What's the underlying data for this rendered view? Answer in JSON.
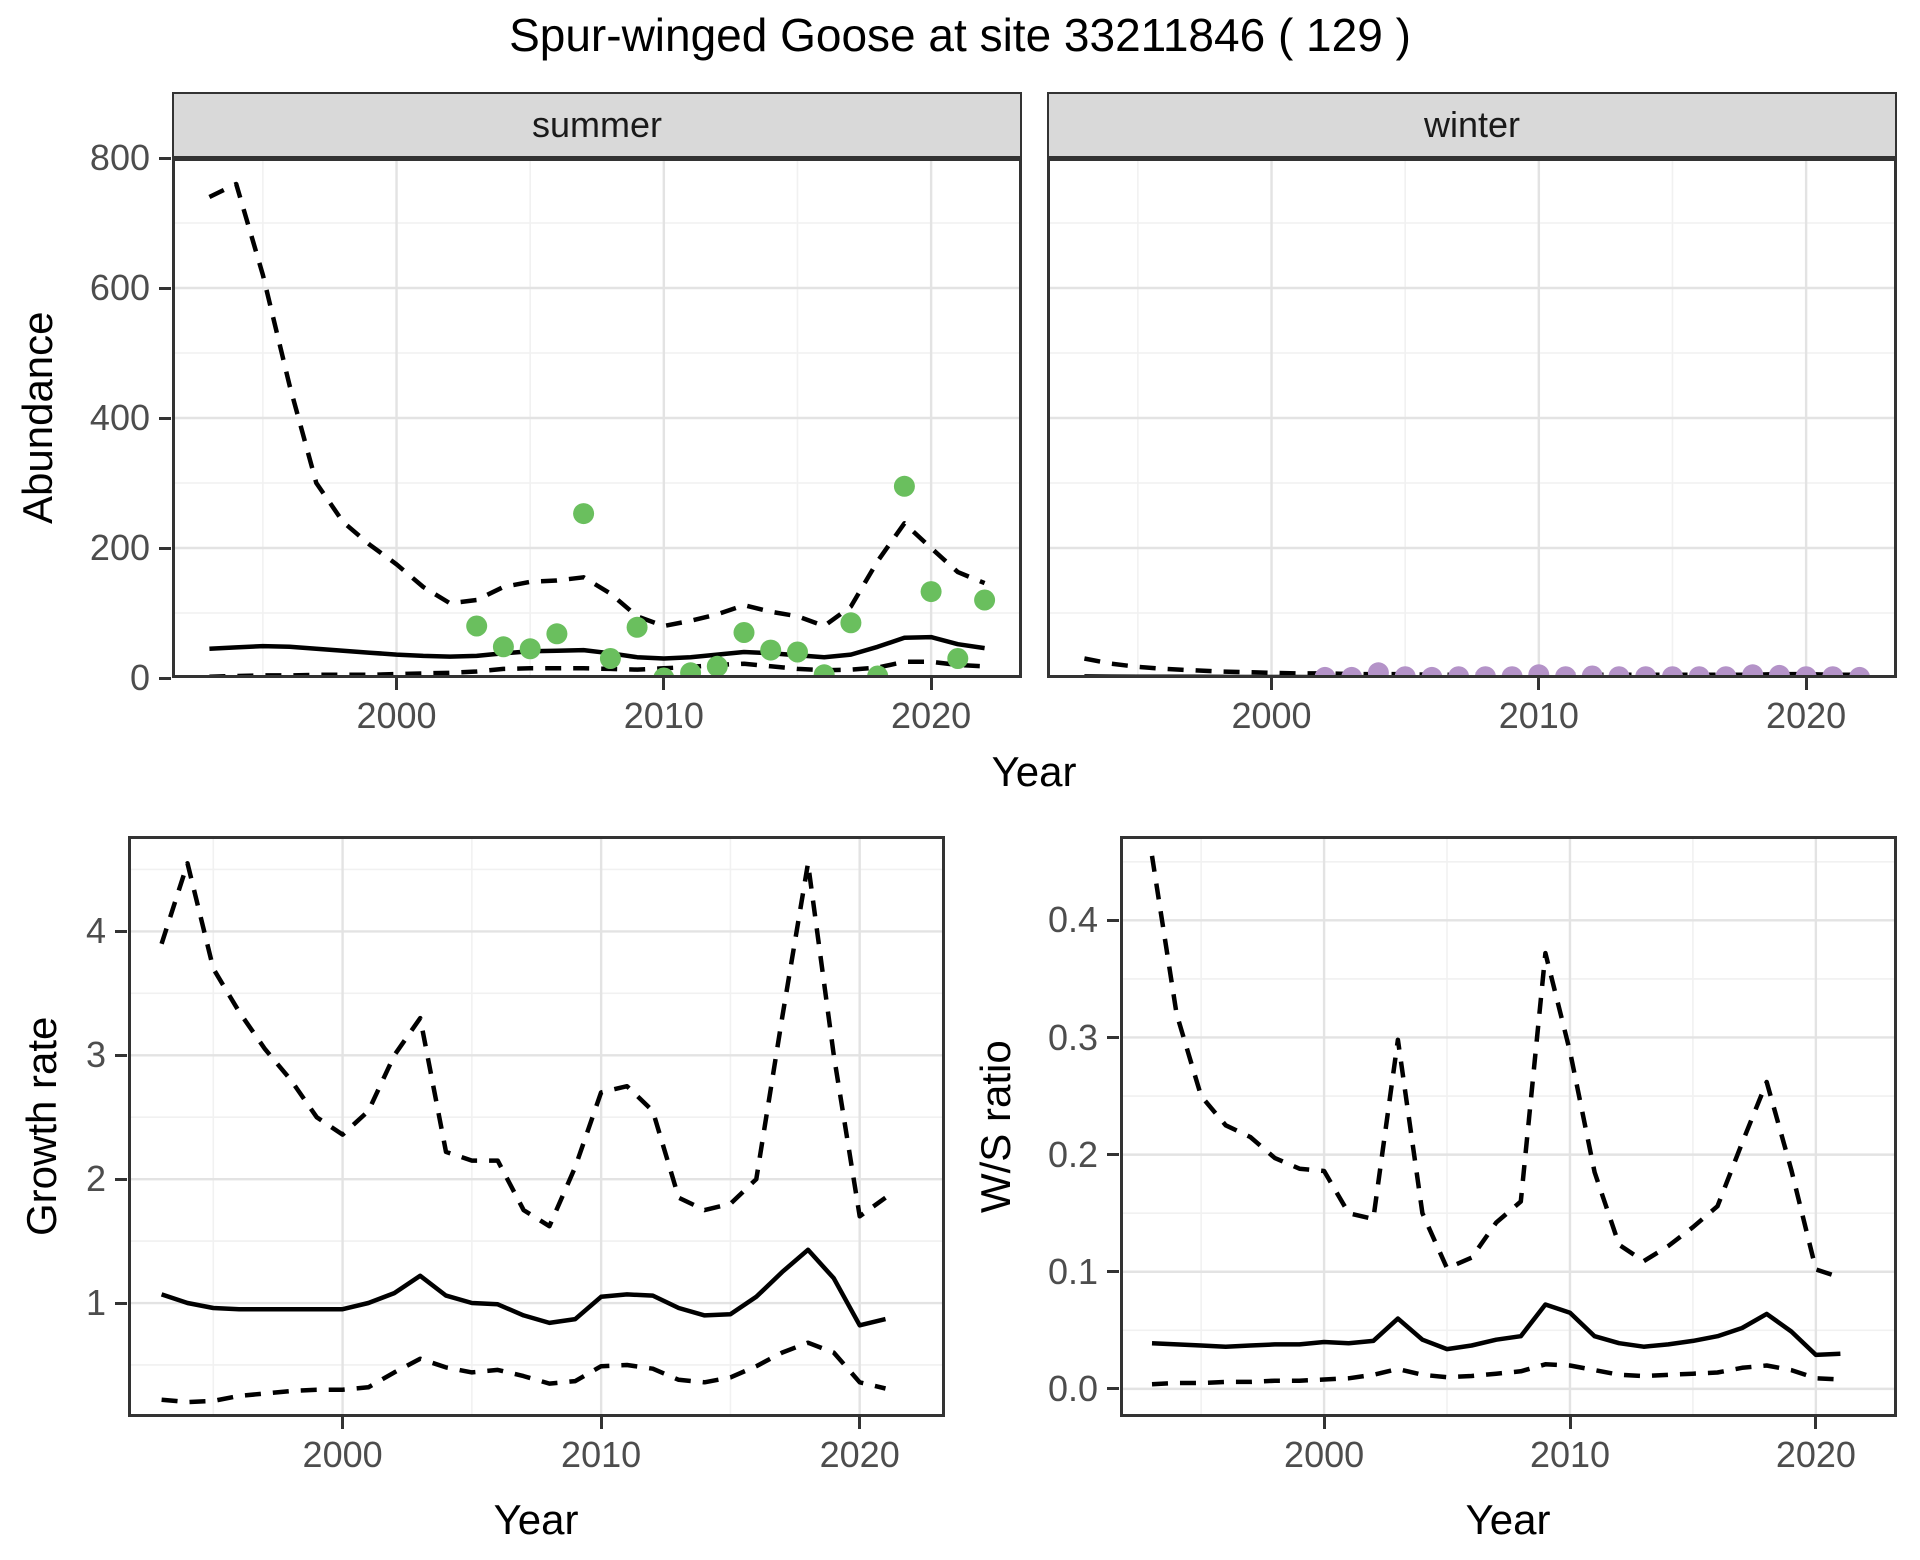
{
  "title": "Spur-winged Goose at site 33211846 ( 129 )",
  "colors": {
    "summer_point": "#6abf5e",
    "winter_point": "#b493c8",
    "fit_line": "#000000",
    "strip_bg": "#d9d9d9",
    "panel_border": "#333333",
    "grid_major": "#e3e3e3",
    "grid_minor": "#f1f1f1",
    "tick_text": "#4d4d4d"
  },
  "facets": {
    "summer": "summer",
    "winter": "winter"
  },
  "axis_titles": {
    "abundance": "Abundance",
    "year_top": "Year",
    "growth": "Growth rate",
    "year_bl": "Year",
    "ws": "W/S ratio",
    "year_br": "Year"
  },
  "chart_data": [
    {
      "id": "summer",
      "type": "line",
      "facet_label": "summer",
      "xlabel": "Year",
      "ylabel": "Abundance",
      "xlim": [
        1991.6,
        2023.4
      ],
      "ylim": [
        0,
        800
      ],
      "xticks": {
        "values": [
          2000,
          2010,
          2020
        ],
        "labels": [
          "2000",
          "2010",
          "2020"
        ]
      },
      "yticks": {
        "values": [
          0,
          200,
          400,
          600,
          800
        ],
        "labels": [
          "0",
          "200",
          "400",
          "600",
          "800"
        ]
      },
      "grid": true,
      "legend": "none",
      "series": [
        {
          "name": "upper-ci",
          "linetype": "dashed",
          "years": [
            1993,
            1994,
            1995,
            1996,
            1997,
            1998,
            1999,
            2000,
            2001,
            2002,
            2003,
            2004,
            2005,
            2006,
            2007,
            2008,
            2009,
            2010,
            2011,
            2012,
            2013,
            2014,
            2015,
            2016,
            2017,
            2018,
            2019,
            2020,
            2021,
            2022
          ],
          "values": [
            740,
            760,
            620,
            450,
            300,
            240,
            205,
            175,
            140,
            115,
            120,
            140,
            148,
            150,
            155,
            130,
            95,
            80,
            88,
            98,
            112,
            102,
            95,
            80,
            110,
            180,
            238,
            200,
            163,
            146
          ]
        },
        {
          "name": "mean-fit",
          "linetype": "solid",
          "years": [
            1993,
            1994,
            1995,
            1996,
            1997,
            1998,
            1999,
            2000,
            2001,
            2002,
            2003,
            2004,
            2005,
            2006,
            2007,
            2008,
            2009,
            2010,
            2011,
            2012,
            2013,
            2014,
            2015,
            2016,
            2017,
            2018,
            2019,
            2020,
            2021,
            2022
          ],
          "values": [
            45,
            47,
            49,
            48,
            45,
            42,
            39,
            36,
            34,
            33,
            34,
            38,
            41,
            42,
            43,
            38,
            32,
            30,
            32,
            36,
            40,
            38,
            35,
            32,
            36,
            48,
            62,
            63,
            52,
            46
          ]
        },
        {
          "name": "lower-ci",
          "linetype": "dashed",
          "years": [
            1993,
            1994,
            1995,
            1996,
            1997,
            1998,
            1999,
            2000,
            2001,
            2002,
            2003,
            2004,
            2005,
            2006,
            2007,
            2008,
            2009,
            2010,
            2011,
            2012,
            2013,
            2014,
            2015,
            2016,
            2017,
            2018,
            2019,
            2020,
            2021,
            2022
          ],
          "values": [
            2,
            3,
            4,
            4,
            5,
            5,
            5,
            6,
            7,
            8,
            10,
            14,
            15,
            15,
            15,
            14,
            13,
            15,
            17,
            20,
            22,
            18,
            14,
            12,
            13,
            16,
            25,
            25,
            20,
            18
          ]
        }
      ],
      "points": {
        "name": "observed-count",
        "color_key": "summer_point",
        "years": [
          2003,
          2004,
          2005,
          2006,
          2007,
          2008,
          2009,
          2010,
          2011,
          2012,
          2013,
          2014,
          2015,
          2016,
          2017,
          2018,
          2019,
          2020,
          2021,
          2022
        ],
        "values": [
          80,
          48,
          45,
          68,
          253,
          30,
          78,
          0,
          8,
          18,
          70,
          43,
          40,
          5,
          85,
          3,
          295,
          133,
          30,
          120
        ]
      }
    },
    {
      "id": "winter",
      "type": "line",
      "facet_label": "winter",
      "xlabel": "Year",
      "ylabel": "Abundance",
      "xlim": [
        1991.6,
        2023.4
      ],
      "ylim": [
        0,
        800
      ],
      "xticks": {
        "values": [
          2000,
          2010,
          2020
        ],
        "labels": [
          "2000",
          "2010",
          "2020"
        ]
      },
      "yticks": {
        "values": [
          0,
          200,
          400,
          600,
          800
        ],
        "labels": [
          "0",
          "200",
          "400",
          "600",
          "800"
        ]
      },
      "grid": true,
      "legend": "none",
      "series": [
        {
          "name": "upper-ci",
          "linetype": "dashed",
          "years": [
            1993,
            1994,
            1995,
            1996,
            1997,
            1998,
            1999,
            2000,
            2001,
            2002,
            2003,
            2004,
            2005,
            2006,
            2007,
            2008,
            2009,
            2010,
            2011,
            2012,
            2013,
            2014,
            2015,
            2016,
            2017,
            2018,
            2019,
            2020,
            2021,
            2022
          ],
          "values": [
            30,
            22,
            17,
            14,
            12,
            10,
            9,
            8,
            7,
            7,
            6,
            6,
            6,
            5,
            5,
            5,
            5,
            5,
            5,
            5,
            5,
            5,
            5,
            5,
            5,
            5,
            6,
            6,
            5,
            5
          ]
        },
        {
          "name": "mean-fit",
          "linetype": "solid",
          "years": [
            1993,
            1994,
            1995,
            1996,
            1997,
            1998,
            1999,
            2000,
            2001,
            2002,
            2003,
            2004,
            2005,
            2006,
            2007,
            2008,
            2009,
            2010,
            2011,
            2012,
            2013,
            2014,
            2015,
            2016,
            2017,
            2018,
            2019,
            2020,
            2021,
            2022
          ],
          "values": [
            2.5,
            2.2,
            2.0,
            1.9,
            1.8,
            1.7,
            1.6,
            1.5,
            1.5,
            1.4,
            1.4,
            1.3,
            1.3,
            1.3,
            1.2,
            1.2,
            1.2,
            1.2,
            1.2,
            1.2,
            1.2,
            1.2,
            1.2,
            1.2,
            1.2,
            1.2,
            1.3,
            1.3,
            1.2,
            1.2
          ]
        },
        {
          "name": "lower-ci",
          "linetype": "dashed",
          "years": [
            1993,
            1994,
            1995,
            1996,
            1997,
            1998,
            1999,
            2000,
            2001,
            2002,
            2003,
            2004,
            2005,
            2006,
            2007,
            2008,
            2009,
            2010,
            2011,
            2012,
            2013,
            2014,
            2015,
            2016,
            2017,
            2018,
            2019,
            2020,
            2021,
            2022
          ],
          "values": [
            0.1,
            0.1,
            0.1,
            0.1,
            0.1,
            0.1,
            0.1,
            0.1,
            0.1,
            0.1,
            0.1,
            0.1,
            0.1,
            0.1,
            0.1,
            0.1,
            0.1,
            0.1,
            0.1,
            0.1,
            0.1,
            0.1,
            0.1,
            0.1,
            0.1,
            0.1,
            0.1,
            0.1,
            0.1,
            0.1
          ]
        }
      ],
      "points": {
        "name": "observed-count",
        "color_key": "winter_point",
        "years": [
          2002,
          2003,
          2004,
          2005,
          2006,
          2007,
          2008,
          2009,
          2010,
          2011,
          2012,
          2013,
          2014,
          2015,
          2016,
          2017,
          2018,
          2019,
          2020,
          2021,
          2022
        ],
        "values": [
          1,
          1,
          8,
          2,
          1,
          2,
          2,
          2,
          5,
          2,
          3,
          2,
          2,
          2,
          2,
          2,
          5,
          4,
          2,
          2,
          1
        ]
      }
    },
    {
      "id": "growth",
      "type": "line",
      "facet_label": "",
      "xlabel": "Year",
      "ylabel": "Growth rate",
      "xlim": [
        1991.7,
        2023.3
      ],
      "ylim": [
        0.08,
        4.77
      ],
      "xticks": {
        "values": [
          2000,
          2010,
          2020
        ],
        "labels": [
          "2000",
          "2010",
          "2020"
        ]
      },
      "yticks": {
        "values": [
          1,
          2,
          3,
          4
        ],
        "labels": [
          "1",
          "2",
          "3",
          "4"
        ]
      },
      "grid": true,
      "legend": "none",
      "series": [
        {
          "name": "upper-ci",
          "linetype": "dashed",
          "years": [
            1993,
            1994,
            1995,
            1996,
            1997,
            1998,
            1999,
            2000,
            2001,
            2002,
            2003,
            2004,
            2005,
            2006,
            2007,
            2008,
            2009,
            2010,
            2011,
            2012,
            2013,
            2014,
            2015,
            2016,
            2017,
            2018,
            2019,
            2020,
            2021
          ],
          "values": [
            3.9,
            4.55,
            3.7,
            3.35,
            3.05,
            2.8,
            2.5,
            2.36,
            2.55,
            3.0,
            3.3,
            2.22,
            2.15,
            2.15,
            1.75,
            1.62,
            2.1,
            2.7,
            2.75,
            2.55,
            1.85,
            1.75,
            1.8,
            2.0,
            3.3,
            4.55,
            3.0,
            1.7,
            1.85
          ]
        },
        {
          "name": "mean-fit",
          "linetype": "solid",
          "years": [
            1993,
            1994,
            1995,
            1996,
            1997,
            1998,
            1999,
            2000,
            2001,
            2002,
            2003,
            2004,
            2005,
            2006,
            2007,
            2008,
            2009,
            2010,
            2011,
            2012,
            2013,
            2014,
            2015,
            2016,
            2017,
            2018,
            2019,
            2020,
            2021
          ],
          "values": [
            1.07,
            1.0,
            0.96,
            0.95,
            0.95,
            0.95,
            0.95,
            0.95,
            1.0,
            1.08,
            1.22,
            1.06,
            1.0,
            0.99,
            0.9,
            0.84,
            0.87,
            1.05,
            1.07,
            1.06,
            0.96,
            0.9,
            0.91,
            1.05,
            1.25,
            1.43,
            1.2,
            0.82,
            0.87
          ]
        },
        {
          "name": "lower-ci",
          "linetype": "dashed",
          "years": [
            1993,
            1994,
            1995,
            1996,
            1997,
            1998,
            1999,
            2000,
            2001,
            2002,
            2003,
            2004,
            2005,
            2006,
            2007,
            2008,
            2009,
            2010,
            2011,
            2012,
            2013,
            2014,
            2015,
            2016,
            2017,
            2018,
            2019,
            2020,
            2021
          ],
          "values": [
            0.22,
            0.2,
            0.21,
            0.25,
            0.27,
            0.29,
            0.3,
            0.3,
            0.32,
            0.44,
            0.55,
            0.48,
            0.44,
            0.46,
            0.41,
            0.35,
            0.37,
            0.49,
            0.5,
            0.47,
            0.38,
            0.36,
            0.4,
            0.49,
            0.6,
            0.68,
            0.6,
            0.36,
            0.31
          ]
        }
      ],
      "points": null
    },
    {
      "id": "ws",
      "type": "line",
      "facet_label": "",
      "xlabel": "Year",
      "ylabel": "W/S ratio",
      "xlim": [
        1991.7,
        2023.3
      ],
      "ylim": [
        -0.024,
        0.472
      ],
      "xticks": {
        "values": [
          2000,
          2010,
          2020
        ],
        "labels": [
          "2000",
          "2010",
          "2020"
        ]
      },
      "yticks": {
        "values": [
          0.0,
          0.1,
          0.2,
          0.3,
          0.4
        ],
        "labels": [
          "0.0",
          "0.1",
          "0.2",
          "0.3",
          "0.4"
        ]
      },
      "grid": true,
      "legend": "none",
      "series": [
        {
          "name": "upper-ci",
          "linetype": "dashed",
          "years": [
            1993,
            1994,
            1995,
            1996,
            1997,
            1998,
            1999,
            2000,
            2001,
            2002,
            2003,
            2004,
            2005,
            2006,
            2007,
            2008,
            2009,
            2010,
            2011,
            2012,
            2013,
            2014,
            2015,
            2016,
            2017,
            2018,
            2019,
            2020,
            2021
          ],
          "values": [
            0.455,
            0.32,
            0.25,
            0.225,
            0.215,
            0.197,
            0.188,
            0.186,
            0.15,
            0.145,
            0.298,
            0.15,
            0.103,
            0.112,
            0.142,
            0.16,
            0.372,
            0.288,
            0.185,
            0.123,
            0.109,
            0.122,
            0.138,
            0.156,
            0.21,
            0.262,
            0.187,
            0.102,
            0.095
          ]
        },
        {
          "name": "mean-fit",
          "linetype": "solid",
          "years": [
            1993,
            1994,
            1995,
            1996,
            1997,
            1998,
            1999,
            2000,
            2001,
            2002,
            2003,
            2004,
            2005,
            2006,
            2007,
            2008,
            2009,
            2010,
            2011,
            2012,
            2013,
            2014,
            2015,
            2016,
            2017,
            2018,
            2019,
            2020,
            2021
          ],
          "values": [
            0.039,
            0.038,
            0.037,
            0.036,
            0.037,
            0.038,
            0.038,
            0.04,
            0.039,
            0.041,
            0.06,
            0.042,
            0.034,
            0.037,
            0.042,
            0.045,
            0.072,
            0.065,
            0.045,
            0.039,
            0.036,
            0.038,
            0.041,
            0.045,
            0.052,
            0.064,
            0.049,
            0.029,
            0.03
          ]
        },
        {
          "name": "lower-ci",
          "linetype": "dashed",
          "years": [
            1993,
            1994,
            1995,
            1996,
            1997,
            1998,
            1999,
            2000,
            2001,
            2002,
            2003,
            2004,
            2005,
            2006,
            2007,
            2008,
            2009,
            2010,
            2011,
            2012,
            2013,
            2014,
            2015,
            2016,
            2017,
            2018,
            2019,
            2020,
            2021
          ],
          "values": [
            0.004,
            0.005,
            0.005,
            0.006,
            0.006,
            0.007,
            0.007,
            0.008,
            0.009,
            0.012,
            0.017,
            0.012,
            0.01,
            0.011,
            0.013,
            0.015,
            0.021,
            0.02,
            0.016,
            0.012,
            0.011,
            0.012,
            0.013,
            0.014,
            0.018,
            0.02,
            0.016,
            0.009,
            0.008
          ]
        }
      ],
      "points": null
    }
  ]
}
